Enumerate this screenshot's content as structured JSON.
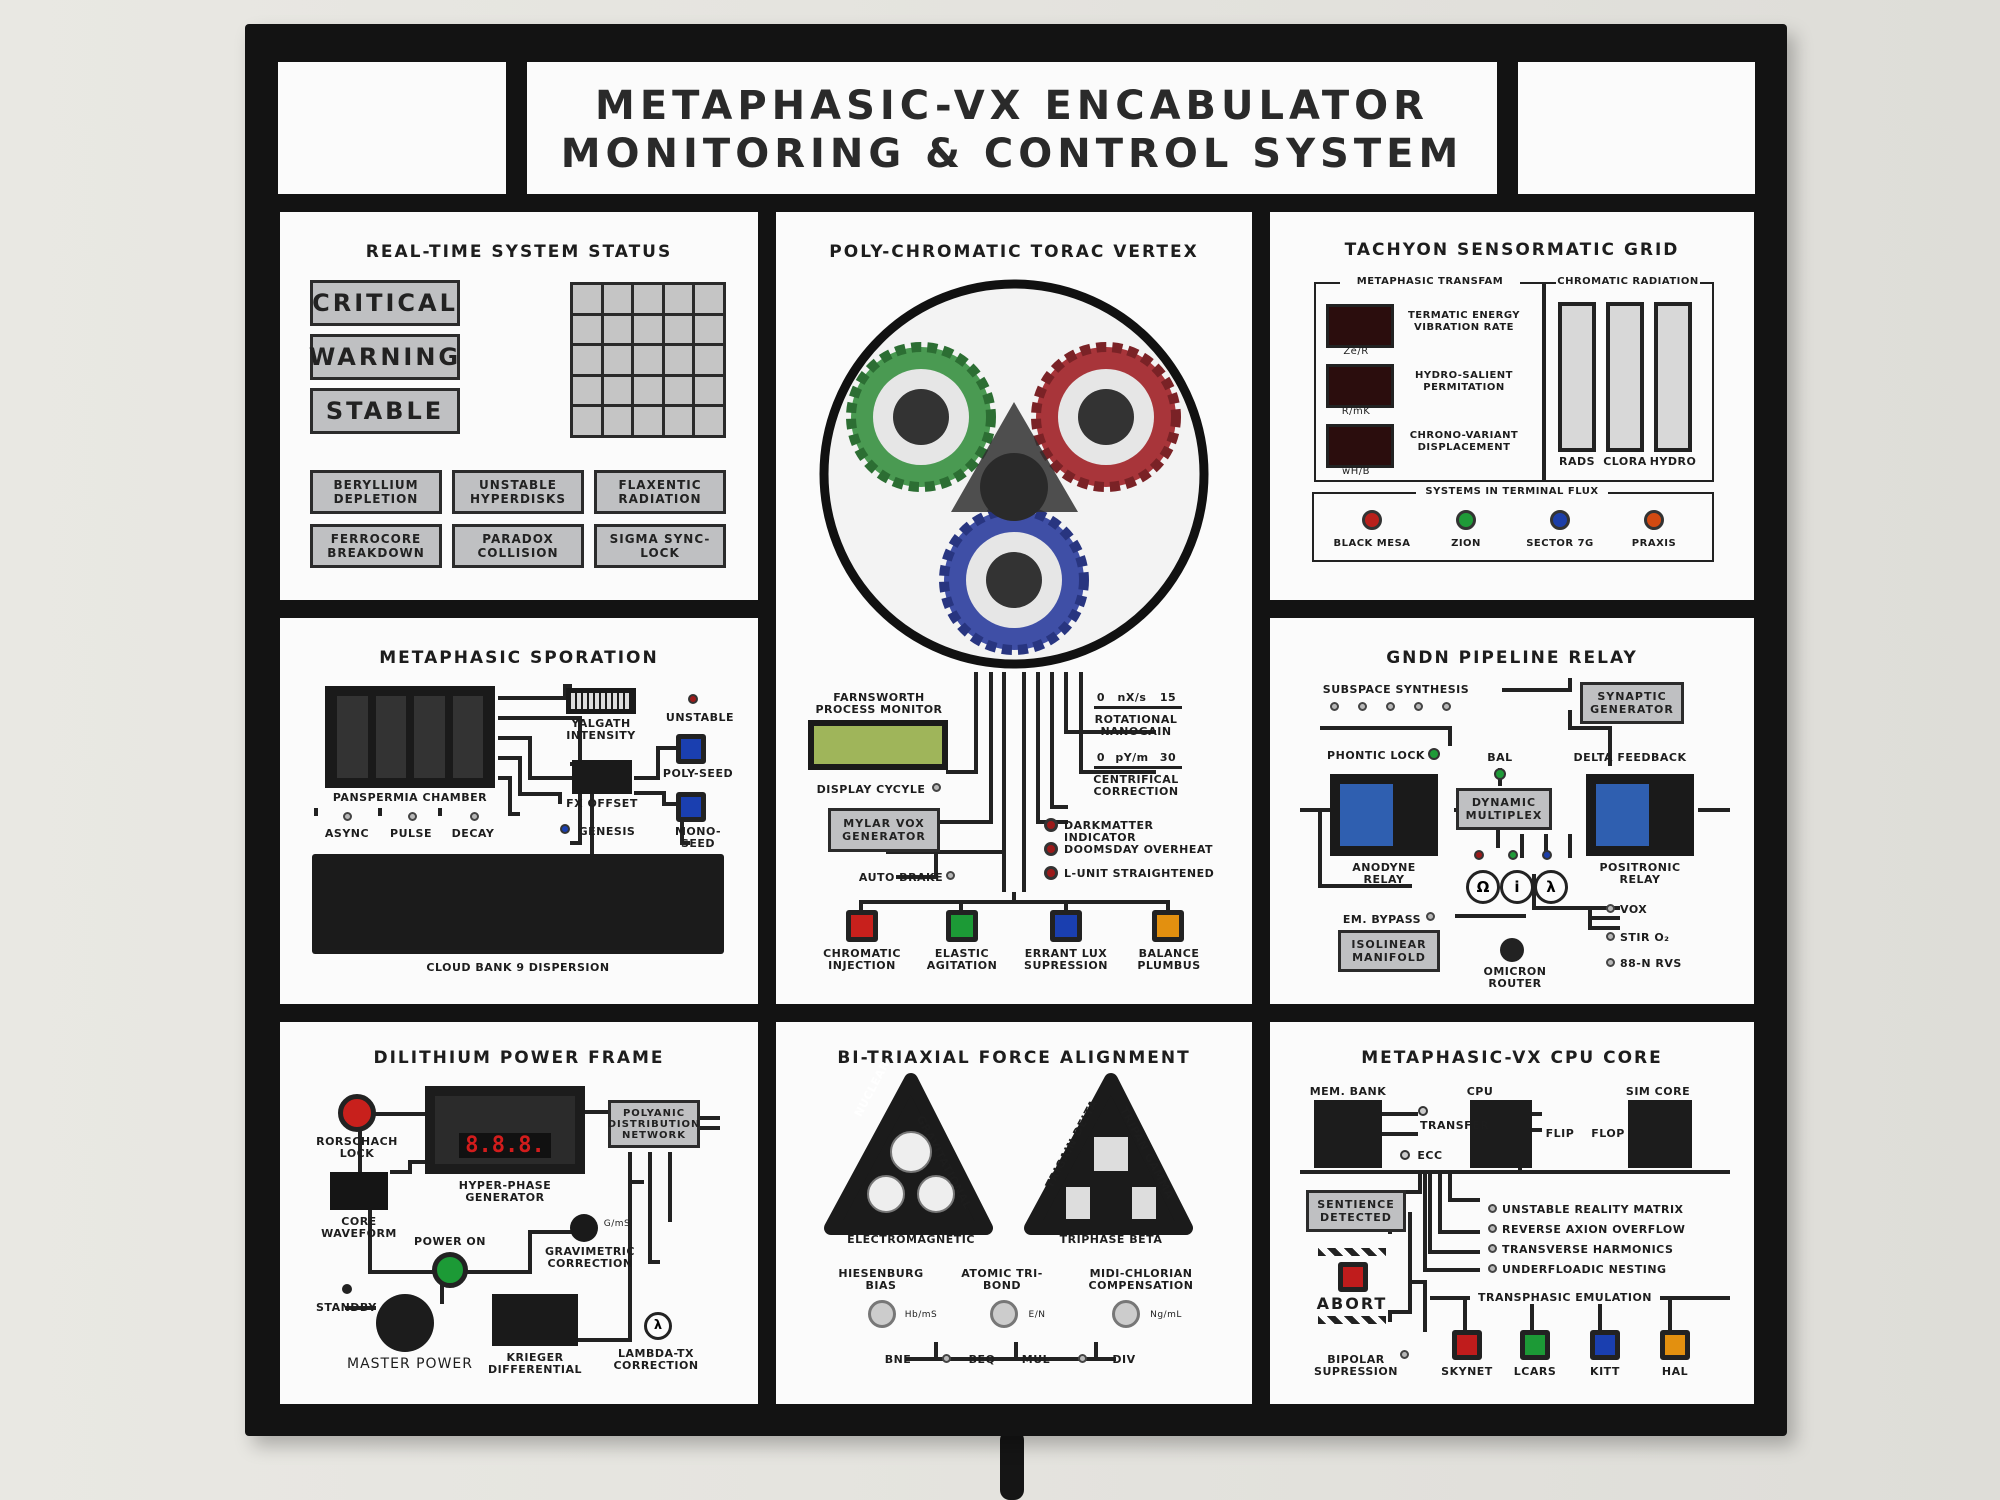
{
  "title": {
    "line1": "METAPHASIC-VX ENCABULATOR",
    "line2": "MONITORING & CONTROL SYSTEM"
  },
  "status": {
    "title": "REAL-TIME SYSTEM STATUS",
    "big": [
      "CRITICAL",
      "WARNING",
      "STABLE"
    ],
    "small": [
      "BERYLLIUM DEPLETION",
      "UNSTABLE HYPERDISKS",
      "FLAXENTIC RADIATION",
      "FERROCORE BREAKDOWN",
      "PARADOX COLLISION",
      "SIGMA SYNC-LOCK"
    ]
  },
  "torac": {
    "title": "POLY-CHROMATIC TORAC VERTEX",
    "farnsworth": "FARNSWORTH PROCESS MONITOR",
    "display_cycle": "DISPLAY CYCYLE",
    "mylar": "MYLAR VOX GENERATOR",
    "auto_brake": "AUTO BRAKE",
    "rot_scale": [
      "0",
      "nX/s",
      "15"
    ],
    "rot_label": "ROTATIONAL NANOGAIN",
    "cent_scale": [
      "0",
      "pY/m",
      "30"
    ],
    "cent_label": "CENTRIFICAL CORRECTION",
    "indicators": [
      "DARKMATTER INDICATOR",
      "DOOMSDAY OVERHEAT",
      "L-UNIT STRAIGHTENED"
    ],
    "buttons": [
      "CHROMATIC INJECTION",
      "ELASTIC AGITATION",
      "ERRANT LUX SUPRESSION",
      "BALANCE PLUMBUS"
    ],
    "button_colors": [
      "#c8201c",
      "#1c9a36",
      "#1a3fb0",
      "#e3900f"
    ]
  },
  "tachyon": {
    "title": "TACHYON SENSORMATIC GRID",
    "transfam": "METAPHASIC TRANSFAM",
    "readouts": [
      {
        "label": "TERMATIC ENERGY VIBRATION RATE",
        "unit": "Ze/R"
      },
      {
        "label": "HYDRO-SALIENT PERMITATION",
        "unit": "R/mK"
      },
      {
        "label": "CHRONO-VARIANT DISPLACEMENT",
        "unit": "wH/B"
      }
    ],
    "chromatic": "CHROMATIC RADIATION",
    "bars": [
      "RADS",
      "CLORA",
      "HYDRO"
    ],
    "flux": "SYSTEMS IN TERMINAL FLUX",
    "systems": [
      "BLACK MESA",
      "ZION",
      "SECTOR 7G",
      "PRAXIS"
    ],
    "system_colors": [
      "#b9201c",
      "#1f9a38",
      "#1c3ea8",
      "#d24a12"
    ]
  },
  "sporation": {
    "title": "METAPHASIC SPORATION",
    "chamber": "PANSPERMIA CHAMBER",
    "switches": [
      "ASYNC",
      "PULSE",
      "DECAY"
    ],
    "yalgath": "YALGATH INTENSITY",
    "fx": "FX OFFSET",
    "unstable": "UNSTABLE",
    "poly": "POLY-SEED",
    "mono": "MONO-SEED",
    "genesis": "GENESIS",
    "cloud": "CLOUD BANK 9 DISPERSION"
  },
  "gndn": {
    "title": "GNDN PIPELINE RELAY",
    "subspace": "SUBSPACE SYNTHESIS",
    "synaptic": "SYNAPTIC GENERATOR",
    "phontic": "PHONTIC LOCK",
    "bal": "BAL",
    "delta": "DELTA FEEDBACK",
    "dynamic": "DYNAMIC MULTIPLEX",
    "anodyne": "ANODYNE RELAY",
    "positronic": "POSITRONIC RELAY",
    "bypass": "EM. BYPASS",
    "isolinear": "ISOLINEAR MANIFOLD",
    "omicron": "OMICRON ROUTER",
    "outputs": [
      "VOX",
      "STIR O₂",
      "88-N RVS"
    ],
    "knobs": [
      "Ω",
      "i",
      "λ"
    ]
  },
  "dilithium": {
    "title": "DILITHIUM POWER FRAME",
    "rorschach": "RORSCHACH LOCK",
    "hyper": "HYPER-PHASE GENERATOR",
    "digits": "8.8.8.",
    "polyanic": "POLYANIC DISTRIBUTION NETWORK",
    "core": "CORE WAVEFORM",
    "power_on": "POWER ON",
    "standby": "STANDBY",
    "master": "MASTER POWER",
    "krieger": "KRIEGER DIFFERENTIAL",
    "gravimetric": "GRAVIMETRIC CORRECTION",
    "gms": "G/mS",
    "lambda": "LAMBDA-TX CORRECTION",
    "lambda_symbol": "λ"
  },
  "force": {
    "title": "BI-TRIAXIAL FORCE ALIGNMENT",
    "tri1": [
      "NUCLEAR",
      "GRAVITATIONAL",
      "ELECTROMAGNETIC"
    ],
    "tri2": [
      "TRIGAIN DELTA",
      "TRIPAN GAMMA",
      "TRIPHASE BETA"
    ],
    "dials": [
      {
        "label": "HIESENBURG BIAS",
        "unit": "Hb/mS"
      },
      {
        "label": "ATOMIC TRI-BOND",
        "unit": "E/N"
      },
      {
        "label": "MIDI-CHLORIAN COMPENSATION",
        "unit": "Ng/mL"
      }
    ],
    "toggles": [
      "BNE",
      "BEQ",
      "MUL",
      "DIV"
    ]
  },
  "cpu": {
    "title": "METAPHASIC-VX CPU CORE",
    "mem": "MEM. BANK",
    "cpu": "CPU",
    "sim": "SIM CORE",
    "transfer": "TRANSFER",
    "ecc": "ECC",
    "flip": "FLIP",
    "flop": "FLOP",
    "sentience": "SENTIENCE DETECTED",
    "abort": "ABORT",
    "bipolar": "BIPOLAR SUPRESSION",
    "warnings": [
      "UNSTABLE REALITY MATRIX",
      "REVERSE AXION OVERFLOW",
      "TRANSVERSE HARMONICS",
      "UNDERFLOADIC NESTING"
    ],
    "emulation": "TRANSPHASIC EMULATION",
    "emus": [
      "SKYNET",
      "LCARS",
      "KITT",
      "HAL"
    ],
    "emu_colors": [
      "#c01c1c",
      "#1c9a36",
      "#1a3fb0",
      "#e3900f"
    ]
  }
}
